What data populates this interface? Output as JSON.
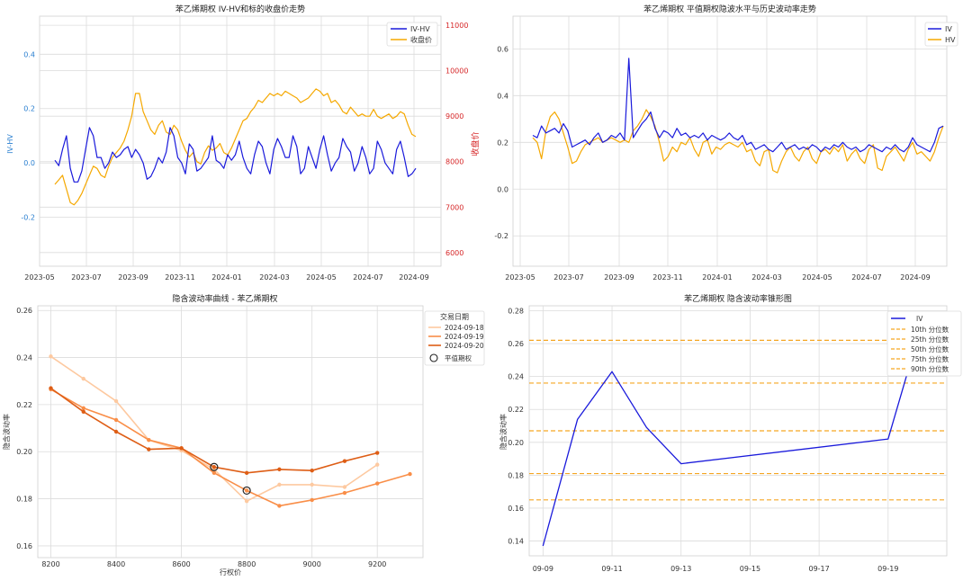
{
  "chart_data": [
    {
      "type": "line",
      "title": "苯乙烯期权 IV-HV和标的收盘价走势",
      "xlabel": "",
      "ylabel": "IV-HV",
      "y2label": "收盘价",
      "x_ticks": [
        "2023-05",
        "2023-07",
        "2023-09",
        "2023-11",
        "2024-01",
        "2024-03",
        "2024-05",
        "2024-07",
        "2024-09"
      ],
      "y_ticks": [
        "-0.2",
        "0.0",
        "0.2",
        "0.4"
      ],
      "y2_ticks": [
        "6000",
        "7000",
        "8000",
        "9000",
        "10000",
        "11000"
      ],
      "ylim": [
        -0.38,
        0.54
      ],
      "y2lim": [
        5700,
        11200
      ],
      "grid": true,
      "legend": "top-right",
      "series": [
        {
          "name": "IV-HV",
          "axis": "left",
          "color": "#1a1adb",
          "values": [
            0.01,
            -0.01,
            0.05,
            0.1,
            -0.02,
            -0.07,
            -0.07,
            -0.03,
            0.05,
            0.13,
            0.1,
            0.02,
            0.02,
            -0.02,
            0.0,
            0.04,
            0.02,
            0.03,
            0.05,
            0.06,
            0.02,
            0.05,
            0.03,
            0.0,
            -0.06,
            -0.05,
            -0.02,
            0.02,
            0.0,
            0.04,
            0.13,
            0.1,
            0.02,
            0.0,
            -0.04,
            0.07,
            0.05,
            -0.03,
            -0.02,
            0.0,
            0.02,
            0.1,
            0.01,
            0.0,
            -0.02,
            0.03,
            0.01,
            0.03,
            0.08,
            0.02,
            -0.02,
            -0.04,
            0.03,
            0.08,
            0.06,
            0.0,
            -0.04,
            0.05,
            0.09,
            0.06,
            0.02,
            0.02,
            0.1,
            0.06,
            -0.04,
            -0.02,
            0.06,
            0.02,
            -0.02,
            0.05,
            0.1,
            0.03,
            -0.03,
            0.0,
            0.02,
            0.09,
            0.06,
            0.04,
            -0.03,
            0.0,
            0.06,
            0.02,
            -0.04,
            -0.02,
            0.08,
            0.05,
            0.0,
            -0.02,
            -0.04,
            0.05,
            0.08,
            0.02,
            -0.05,
            -0.04,
            -0.02
          ]
        },
        {
          "name": "收盘价",
          "axis": "right",
          "color": "#f5a800",
          "values": [
            7500,
            7600,
            7700,
            7400,
            7100,
            7050,
            7150,
            7300,
            7500,
            7700,
            7900,
            7850,
            7700,
            7650,
            7900,
            8100,
            8200,
            8300,
            8450,
            8700,
            9000,
            9500,
            9500,
            9100,
            8900,
            8700,
            8600,
            8800,
            8900,
            8650,
            8600,
            8800,
            8700,
            8450,
            8250,
            8100,
            8200,
            8000,
            7950,
            8200,
            8350,
            8250,
            8300,
            8400,
            8200,
            8150,
            8300,
            8500,
            8700,
            8900,
            8950,
            9100,
            9200,
            9350,
            9300,
            9400,
            9500,
            9450,
            9500,
            9450,
            9550,
            9500,
            9450,
            9400,
            9300,
            9350,
            9400,
            9500,
            9600,
            9550,
            9450,
            9500,
            9300,
            9350,
            9250,
            9100,
            9050,
            9200,
            9100,
            9000,
            9050,
            9000,
            9000,
            9150,
            9000,
            8950,
            9000,
            9050,
            8950,
            9000,
            9100,
            9050,
            8800,
            8600,
            8550
          ]
        }
      ]
    },
    {
      "type": "line",
      "title": "苯乙烯期权 平值期权隐波水平与历史波动率走势",
      "xlabel": "",
      "ylabel": "",
      "x_ticks": [
        "2023-05",
        "2023-07",
        "2023-09",
        "2023-11",
        "2024-01",
        "2024-03",
        "2024-05",
        "2024-07",
        "2024-09"
      ],
      "y_ticks": [
        "-0.2",
        "0.0",
        "0.2",
        "0.4",
        "0.6"
      ],
      "ylim": [
        -0.33,
        0.74
      ],
      "grid": true,
      "legend": "top-right",
      "series": [
        {
          "name": "IV",
          "color": "#1a1adb",
          "values": [
            0.23,
            0.22,
            0.27,
            0.24,
            0.25,
            0.26,
            0.24,
            0.28,
            0.25,
            0.18,
            0.19,
            0.2,
            0.21,
            0.19,
            0.22,
            0.24,
            0.2,
            0.21,
            0.23,
            0.22,
            0.24,
            0.21,
            0.56,
            0.22,
            0.25,
            0.28,
            0.3,
            0.33,
            0.26,
            0.22,
            0.25,
            0.24,
            0.22,
            0.26,
            0.23,
            0.24,
            0.22,
            0.23,
            0.22,
            0.24,
            0.21,
            0.23,
            0.22,
            0.21,
            0.22,
            0.24,
            0.22,
            0.21,
            0.23,
            0.19,
            0.2,
            0.17,
            0.18,
            0.19,
            0.17,
            0.16,
            0.18,
            0.2,
            0.17,
            0.18,
            0.19,
            0.17,
            0.18,
            0.17,
            0.19,
            0.18,
            0.16,
            0.18,
            0.17,
            0.19,
            0.18,
            0.2,
            0.18,
            0.17,
            0.18,
            0.16,
            0.17,
            0.19,
            0.18,
            0.17,
            0.16,
            0.18,
            0.17,
            0.19,
            0.17,
            0.16,
            0.18,
            0.22,
            0.19,
            0.18,
            0.17,
            0.16,
            0.2,
            0.26,
            0.27
          ]
        },
        {
          "name": "HV",
          "color": "#f5a800",
          "values": [
            0.22,
            0.2,
            0.13,
            0.25,
            0.31,
            0.33,
            0.3,
            0.24,
            0.18,
            0.11,
            0.12,
            0.16,
            0.19,
            0.2,
            0.21,
            0.22,
            0.2,
            0.21,
            0.22,
            0.21,
            0.2,
            0.21,
            0.2,
            0.25,
            0.27,
            0.3,
            0.34,
            0.31,
            0.27,
            0.2,
            0.12,
            0.14,
            0.18,
            0.16,
            0.2,
            0.19,
            0.22,
            0.17,
            0.14,
            0.2,
            0.21,
            0.15,
            0.18,
            0.17,
            0.19,
            0.2,
            0.19,
            0.18,
            0.2,
            0.16,
            0.17,
            0.12,
            0.1,
            0.16,
            0.17,
            0.08,
            0.07,
            0.12,
            0.16,
            0.18,
            0.14,
            0.12,
            0.16,
            0.18,
            0.13,
            0.11,
            0.16,
            0.17,
            0.15,
            0.18,
            0.16,
            0.19,
            0.12,
            0.15,
            0.17,
            0.13,
            0.11,
            0.17,
            0.19,
            0.09,
            0.08,
            0.14,
            0.16,
            0.18,
            0.15,
            0.12,
            0.17,
            0.2,
            0.15,
            0.16,
            0.14,
            0.12,
            0.16,
            0.22,
            0.27
          ]
        }
      ]
    },
    {
      "type": "line",
      "title": "隐含波动率曲线 - 苯乙烯期权",
      "xlabel": "行权价",
      "ylabel": "隐含波动率",
      "x_ticks": [
        8200,
        8400,
        8600,
        8800,
        9000,
        9200
      ],
      "y_ticks": [
        0.16,
        0.18,
        0.2,
        0.22,
        0.24,
        0.26
      ],
      "xlim": [
        8160,
        9340
      ],
      "ylim": [
        0.155,
        0.262
      ],
      "grid": true,
      "legend": "right, outside",
      "legend_title": "交易日期",
      "series": [
        {
          "name": "2024-09-18",
          "color": "#fdc9a0",
          "x": [
            8200,
            8300,
            8400,
            8500,
            8600,
            8700,
            8800,
            8900,
            9000,
            9100,
            9200
          ],
          "values": [
            0.2405,
            0.231,
            0.2215,
            0.205,
            0.2005,
            0.1925,
            0.179,
            0.186,
            0.186,
            0.185,
            0.1945
          ]
        },
        {
          "name": "2024-09-19",
          "color": "#f98e48",
          "x": [
            8200,
            8300,
            8400,
            8500,
            8600,
            8700,
            8800,
            8900,
            9000,
            9100,
            9200,
            9300
          ],
          "values": [
            0.2265,
            0.2185,
            0.2135,
            0.205,
            0.2015,
            0.191,
            0.1835,
            0.177,
            0.1795,
            0.1825,
            0.1865,
            0.1905
          ]
        },
        {
          "name": "2024-09-20",
          "color": "#de5e16",
          "x": [
            8200,
            8300,
            8400,
            8500,
            8600,
            8700,
            8800,
            8900,
            9000,
            9100,
            9200
          ],
          "values": [
            0.227,
            0.217,
            0.2085,
            0.201,
            0.2015,
            0.1935,
            0.191,
            0.1925,
            0.192,
            0.196,
            0.1995
          ]
        }
      ],
      "atm_label": "平值期权",
      "atm_points": [
        {
          "x": 8700,
          "y": 0.1935
        },
        {
          "x": 8800,
          "y": 0.1835
        }
      ]
    },
    {
      "type": "line",
      "title": "苯乙烯期权 隐含波动率锥形图",
      "xlabel": "",
      "ylabel": "隐含波动率",
      "x_ticks": [
        "09-09",
        "09-11",
        "09-13",
        "09-15",
        "09-17",
        "09-19"
      ],
      "y_ticks": [
        0.14,
        0.16,
        0.18,
        0.2,
        0.22,
        0.24,
        0.26,
        0.28
      ],
      "xlim": [
        -0.4,
        11.7
      ],
      "ylim": [
        0.131,
        0.283
      ],
      "grid": true,
      "legend": "top-right",
      "series": [
        {
          "name": "IV",
          "color": "#1a1adb",
          "x": [
            0,
            1,
            2,
            3,
            4,
            10,
            11
          ],
          "values": [
            0.137,
            0.214,
            0.243,
            0.209,
            0.187,
            0.202,
            0.274
          ]
        }
      ],
      "percentiles": [
        {
          "name": "10th 分位数",
          "value": 0.165
        },
        {
          "name": "25th 分位数",
          "value": 0.181
        },
        {
          "name": "50th 分位数",
          "value": 0.207
        },
        {
          "name": "75th 分位数",
          "value": 0.236
        },
        {
          "name": "90th 分位数",
          "value": 0.262
        }
      ],
      "percentile_color": "#f5a623"
    }
  ]
}
